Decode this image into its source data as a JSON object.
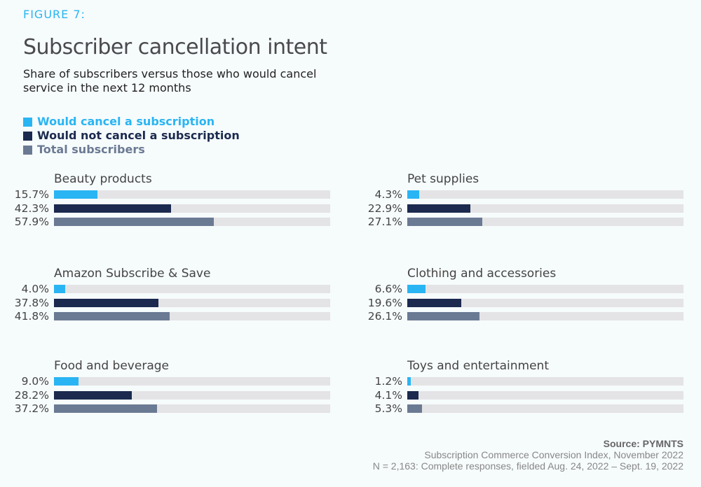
{
  "header": {
    "figure_label": "FIGURE 7:",
    "title": "Subscriber cancellation intent",
    "subtitle": "Share of subscribers versus those who would cancel service in the next 12 months"
  },
  "chart_data": {
    "type": "bar",
    "orientation": "horizontal",
    "unit": "%",
    "xlim": [
      0,
      100
    ],
    "grid": false,
    "legend_placement": "top-left",
    "series": [
      {
        "name": "Would cancel a subscription",
        "color": "#29b5f3"
      },
      {
        "name": "Would not cancel a subscription",
        "color": "#1b2a4e"
      },
      {
        "name": "Total subscribers",
        "color": "#6b7a93"
      }
    ],
    "groups": [
      {
        "category": "Beauty products",
        "values": [
          15.7,
          42.3,
          57.9
        ],
        "labels": [
          "15.7%",
          "42.3%",
          "57.9%"
        ]
      },
      {
        "category": "Pet supplies",
        "values": [
          4.3,
          22.9,
          27.1
        ],
        "labels": [
          "4.3%",
          "22.9%",
          "27.1%"
        ]
      },
      {
        "category": "Amazon Subscribe & Save",
        "values": [
          4.0,
          37.8,
          41.8
        ],
        "labels": [
          "4.0%",
          "37.8%",
          "41.8%"
        ]
      },
      {
        "category": "Clothing and accessories",
        "values": [
          6.6,
          19.6,
          26.1
        ],
        "labels": [
          "6.6%",
          "19.6%",
          "26.1%"
        ]
      },
      {
        "category": "Food and beverage",
        "values": [
          9.0,
          28.2,
          37.2
        ],
        "labels": [
          "9.0%",
          "28.2%",
          "37.2%"
        ]
      },
      {
        "category": "Toys and entertainment",
        "values": [
          1.2,
          4.1,
          5.3
        ],
        "labels": [
          "1.2%",
          "4.1%",
          "5.3%"
        ]
      }
    ],
    "track_color": "#e4e3e6"
  },
  "footer": {
    "source": "Source: PYMNTS",
    "line1": "Subscription Commerce Conversion Index, November 2022",
    "line2": "N = 2,163: Complete responses, fielded Aug. 24, 2022 – Sept. 19, 2022"
  }
}
